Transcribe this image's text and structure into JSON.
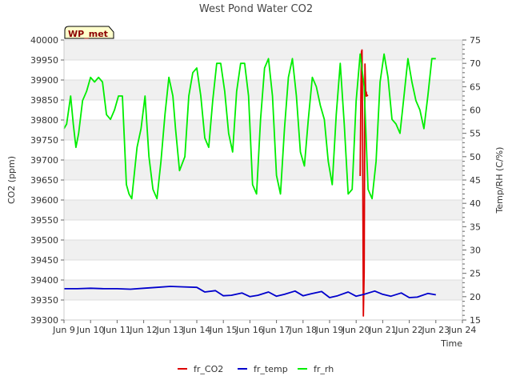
{
  "chart_data": {
    "type": "line",
    "title": "West Pond Water CO2",
    "badge": "WP_met",
    "xlabel": "Time",
    "ylabel": "CO2 (ppm)",
    "y2label": "Temp/RH (C/%)",
    "xlim": [
      9,
      24
    ],
    "ylim": [
      39300,
      40000
    ],
    "y2lim": [
      15,
      75
    ],
    "x_ticks": [
      9,
      10,
      11,
      12,
      13,
      14,
      15,
      16,
      17,
      18,
      19,
      20,
      21,
      22,
      23,
      24
    ],
    "x_tick_labels": [
      "Jun 9",
      "Jun 10",
      "Jun 11",
      "Jun 12",
      "Jun 13",
      "Jun 14",
      "Jun 15",
      "Jun 16",
      "Jun 17",
      "Jun 18",
      "Jun 19",
      "Jun 20",
      "Jun 21",
      "Jun 22",
      "Jun 23",
      "Jun 24"
    ],
    "y_ticks": [
      39300,
      39350,
      39400,
      39450,
      39500,
      39550,
      39600,
      39650,
      39700,
      39750,
      39800,
      39850,
      39900,
      39950,
      40000
    ],
    "y2_ticks": [
      15,
      20,
      25,
      30,
      35,
      40,
      45,
      50,
      55,
      60,
      65,
      70,
      75
    ],
    "grid": true,
    "legend_position": "bottom",
    "series": [
      {
        "name": "fr_CO2",
        "axis": "left",
        "color": "#dd0000",
        "x": [
          20.15,
          20.18,
          20.2,
          20.22,
          20.24,
          20.27,
          20.3,
          20.33,
          20.36,
          20.38,
          20.4,
          20.42,
          20.44
        ],
        "y": [
          39660,
          39880,
          39970,
          39975,
          39800,
          39310,
          39420,
          39940,
          39860,
          39870,
          39860,
          39862,
          39860
        ]
      },
      {
        "name": "fr_temp",
        "axis": "right",
        "color": "#0000cc",
        "x": [
          9.0,
          9.5,
          10.0,
          10.5,
          11.0,
          11.5,
          12.0,
          12.5,
          13.0,
          13.5,
          14.0,
          14.3,
          14.7,
          15.0,
          15.3,
          15.7,
          16.0,
          16.3,
          16.7,
          17.0,
          17.3,
          17.7,
          18.0,
          18.3,
          18.7,
          19.0,
          19.3,
          19.7,
          20.0,
          20.3,
          20.7,
          21.0,
          21.3,
          21.7,
          22.0,
          22.3,
          22.7,
          23.0
        ],
        "y": [
          21.7,
          21.7,
          21.8,
          21.7,
          21.7,
          21.6,
          21.8,
          22.0,
          22.2,
          22.1,
          22.0,
          21.0,
          21.3,
          20.2,
          20.3,
          20.8,
          20.0,
          20.3,
          21.0,
          20.1,
          20.5,
          21.2,
          20.2,
          20.6,
          21.1,
          19.8,
          20.2,
          21.0,
          20.1,
          20.5,
          21.2,
          20.5,
          20.1,
          20.8,
          19.8,
          19.9,
          20.7,
          20.4
        ]
      },
      {
        "name": "fr_rh",
        "axis": "right",
        "color": "#00ee00",
        "x": [
          9.0,
          9.1,
          9.25,
          9.35,
          9.45,
          9.55,
          9.7,
          9.85,
          10.0,
          10.15,
          10.3,
          10.45,
          10.6,
          10.75,
          10.9,
          11.05,
          11.2,
          11.35,
          11.45,
          11.55,
          11.75,
          11.9,
          12.05,
          12.2,
          12.35,
          12.5,
          12.65,
          12.8,
          12.95,
          13.1,
          13.2,
          13.35,
          13.55,
          13.7,
          13.85,
          14.0,
          14.15,
          14.3,
          14.45,
          14.6,
          14.75,
          14.9,
          15.05,
          15.2,
          15.35,
          15.5,
          15.65,
          15.8,
          15.95,
          16.1,
          16.25,
          16.4,
          16.55,
          16.7,
          16.85,
          17.0,
          17.15,
          17.3,
          17.45,
          17.6,
          17.75,
          17.9,
          18.05,
          18.2,
          18.35,
          18.5,
          18.65,
          18.8,
          18.95,
          19.1,
          19.25,
          19.4,
          19.55,
          19.7,
          19.85,
          20.0,
          20.15,
          20.3,
          20.45,
          20.6,
          20.75,
          20.9,
          21.05,
          21.2,
          21.35,
          21.5,
          21.65,
          21.8,
          21.95,
          22.1,
          22.25,
          22.4,
          22.55,
          22.7,
          22.85,
          23.0
        ],
        "y": [
          56,
          57,
          63,
          57,
          52,
          55,
          62,
          64,
          67,
          66,
          67,
          66,
          59,
          58,
          60,
          63,
          63,
          44,
          42,
          41,
          52,
          56,
          63,
          50,
          43,
          41,
          49,
          59,
          67,
          63,
          56,
          47,
          50,
          63,
          68,
          69,
          63,
          54,
          52,
          62,
          70,
          70,
          64,
          55,
          51,
          64,
          70,
          70,
          63,
          44,
          42,
          58,
          69,
          71,
          63,
          46,
          42,
          56,
          67,
          71,
          63,
          51,
          48,
          58,
          67,
          65,
          61,
          58,
          49,
          44,
          59,
          70,
          57,
          42,
          43,
          62,
          72,
          65,
          43,
          41,
          49,
          66,
          72,
          67,
          58,
          57,
          55,
          63,
          71,
          66,
          62,
          60,
          56,
          63,
          71,
          71
        ]
      }
    ]
  }
}
